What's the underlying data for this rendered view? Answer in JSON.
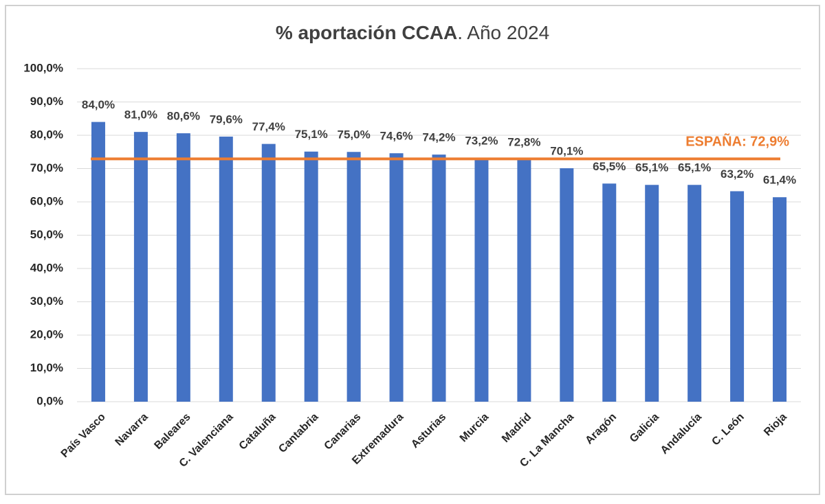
{
  "chart_data": {
    "type": "bar",
    "title_bold": "% aportación CCAA",
    "title_rest": ". Año 2024",
    "categories": [
      "País Vasco",
      "Navarra",
      "Baleares",
      "C. Valenciana",
      "Cataluña",
      "Cantabria",
      "Canarias",
      "Extremadura",
      "Asturias",
      "Murcia",
      "Madrid",
      "C. La Mancha",
      "Aragón",
      "Galicia",
      "Andalucía",
      "C. León",
      "Rioja"
    ],
    "values": [
      84.0,
      81.0,
      80.6,
      79.6,
      77.4,
      75.1,
      75.0,
      74.6,
      74.2,
      73.2,
      72.8,
      70.1,
      65.5,
      65.1,
      65.1,
      63.2,
      61.4
    ],
    "value_labels": [
      "84,0%",
      "81,0%",
      "80,6%",
      "79,6%",
      "77,4%",
      "75,1%",
      "75,0%",
      "74,6%",
      "74,2%",
      "73,2%",
      "72,8%",
      "70,1%",
      "65,5%",
      "65,1%",
      "65,1%",
      "63,2%",
      "61,4%"
    ],
    "color": "#4472c4",
    "ylim": [
      0,
      100
    ],
    "yticks": [
      {
        "value": 0,
        "label": "0,0%"
      },
      {
        "value": 10,
        "label": "10,0%"
      },
      {
        "value": 20,
        "label": "20,0%"
      },
      {
        "value": 30,
        "label": "30,0%"
      },
      {
        "value": 40,
        "label": "40,0%"
      },
      {
        "value": 50,
        "label": "50,0%"
      },
      {
        "value": 60,
        "label": "60,0%"
      },
      {
        "value": 70,
        "label": "70,0%"
      },
      {
        "value": 80,
        "label": "80,0%"
      },
      {
        "value": 90,
        "label": "90,0%"
      },
      {
        "value": 100,
        "label": "100,0%"
      }
    ],
    "grid": true,
    "reference": {
      "label": "ESPAÑA: 72,9%",
      "value": 72.9,
      "color": "#ed7d31"
    }
  }
}
